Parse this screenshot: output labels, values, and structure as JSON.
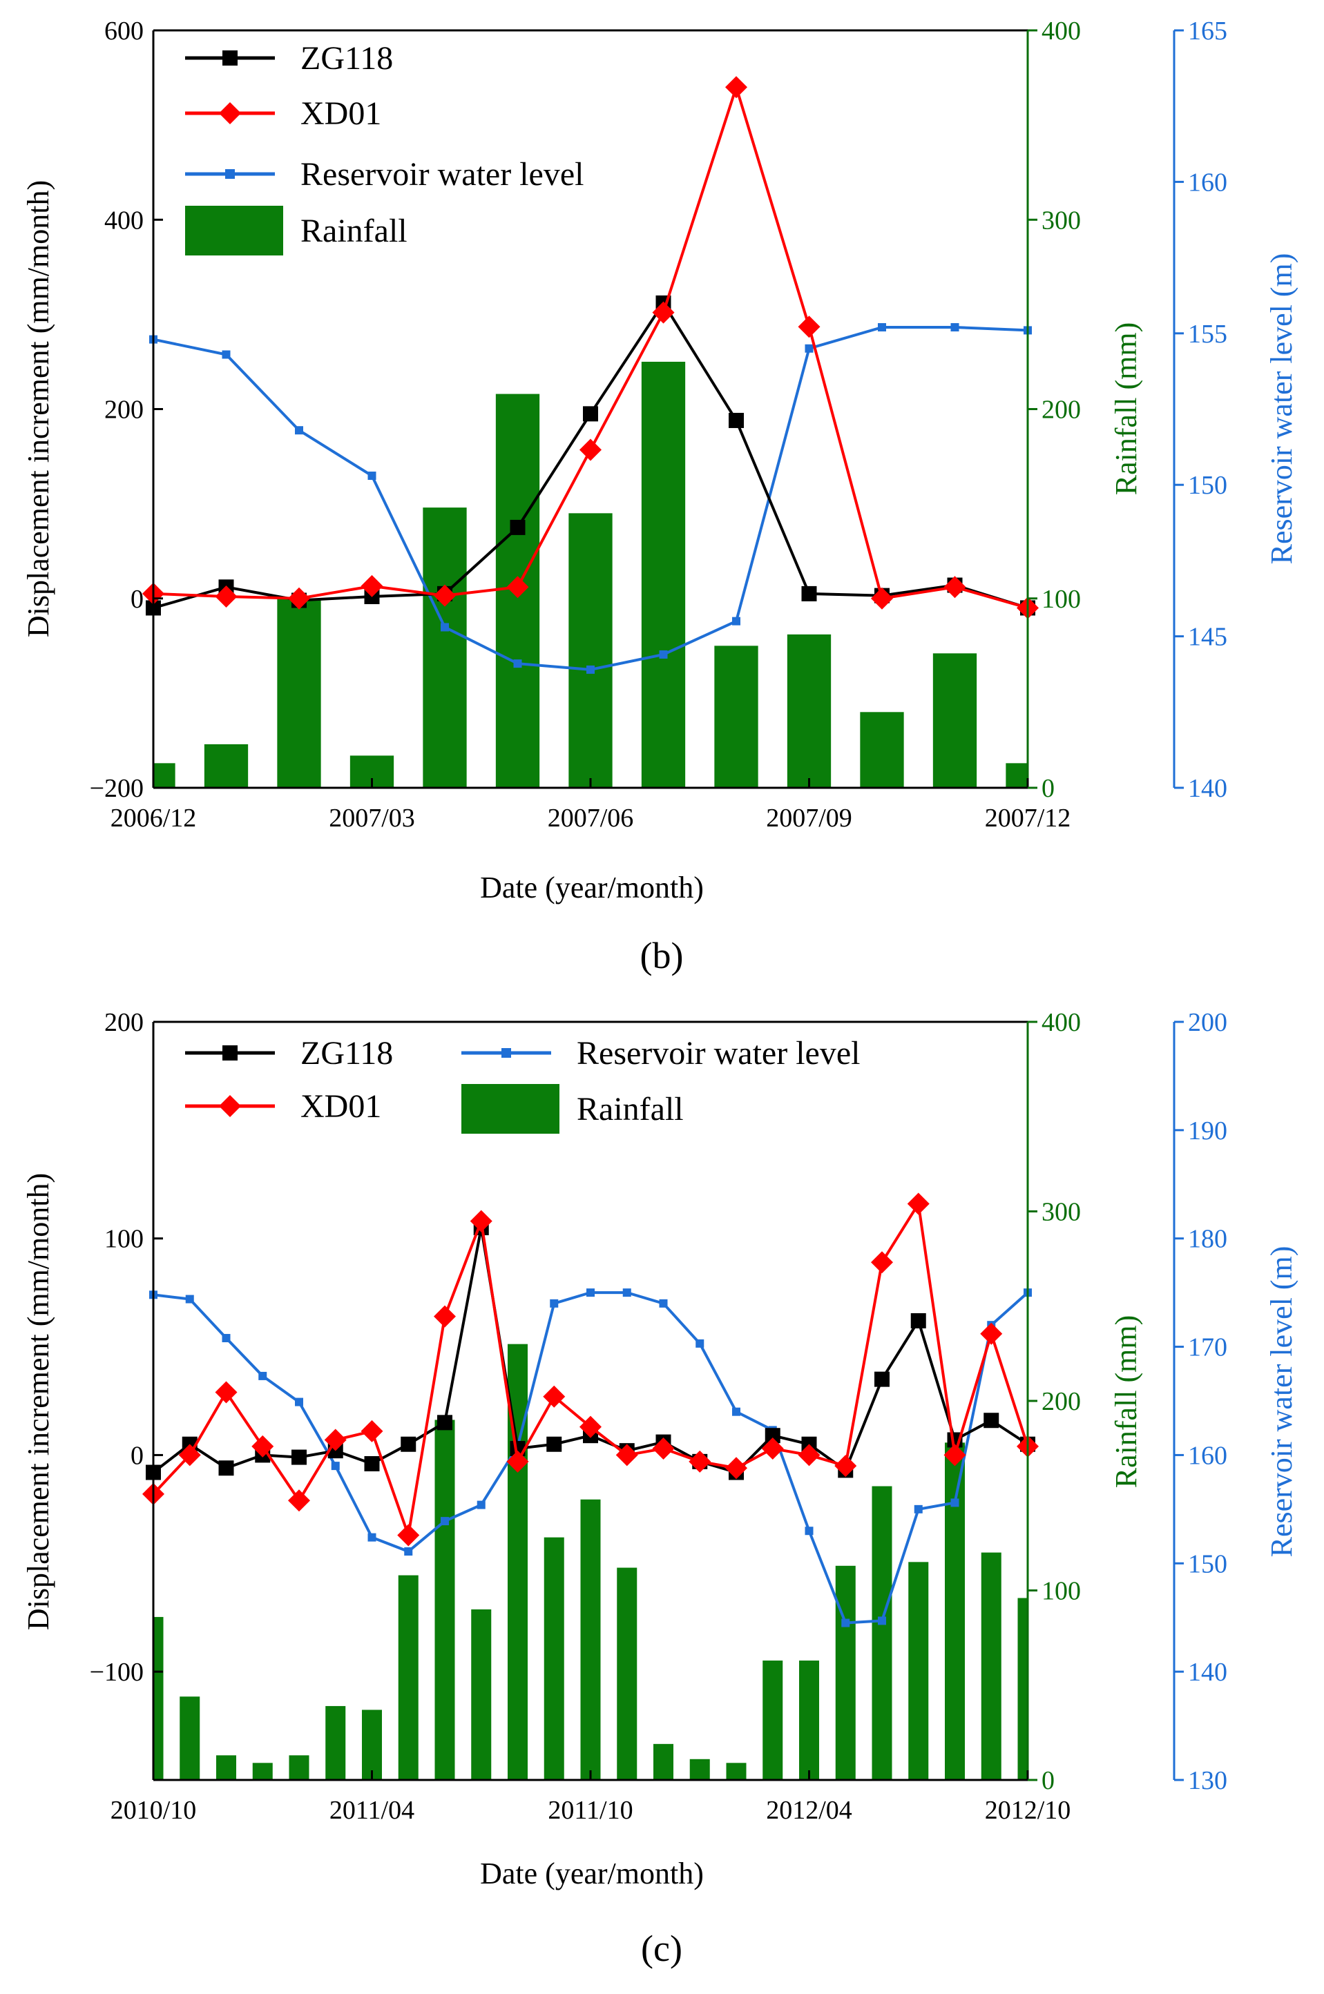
{
  "chart_data": [
    {
      "type": "line+bar",
      "panel_label": "(b)",
      "xlabel": "Date (year/month)",
      "ylabel_left": "Displacement increment (mm/month)",
      "ylabel_right1": "Rainfall (mm)",
      "ylabel_right2": "Reservoir water level (m)",
      "x_ticks": [
        "2006/12",
        "2007/03",
        "2007/06",
        "2007/09",
        "2007/12"
      ],
      "x_tick_index": [
        0,
        3,
        6,
        9,
        12
      ],
      "n_points": 13,
      "ylim_left": [
        -200,
        600
      ],
      "yticks_left": [
        "−200",
        "0",
        "200",
        "400",
        "600"
      ],
      "ylim_rain": [
        0,
        400
      ],
      "yticks_rain": [
        "0",
        "100",
        "200",
        "300",
        "400"
      ],
      "ylim_water": [
        140,
        165
      ],
      "yticks_water": [
        "140",
        "145",
        "150",
        "155",
        "160",
        "165"
      ],
      "colors": {
        "zg118": "#000000",
        "xd01": "#ff0000",
        "water": "#1f6fd6",
        "rain": "#0a7d0a",
        "rain_axis": "#0a6e0a",
        "water_axis": "#1f6fd6"
      },
      "legend": {
        "zg118": "ZG118",
        "xd01": "XD01",
        "water": "Reservoir water level",
        "rain": "Rainfall"
      },
      "series": [
        {
          "name": "ZG118",
          "values": [
            -10,
            12,
            -2,
            2,
            5,
            75,
            195,
            312,
            188,
            5,
            3,
            14,
            -10
          ]
        },
        {
          "name": "XD01",
          "values": [
            5,
            2,
            0,
            13,
            3,
            12,
            157,
            302,
            540,
            287,
            0,
            12,
            -10
          ]
        },
        {
          "name": "Reservoir water level",
          "values": [
            154.8,
            154.3,
            151.8,
            150.3,
            145.3,
            144.1,
            143.9,
            144.4,
            145.5,
            154.5,
            155.2,
            155.2,
            155.1
          ]
        },
        {
          "name": "Rainfall",
          "values": [
            13,
            23,
            100,
            17,
            148,
            208,
            145,
            225,
            75,
            81,
            40,
            71,
            13
          ]
        }
      ]
    },
    {
      "type": "line+bar",
      "panel_label": "(c)",
      "xlabel": "Date (year/month)",
      "ylabel_left": "Displacement increment (mm/month)",
      "ylabel_right1": "Rainfall (mm)",
      "ylabel_right2": "Reservoir water level (m)",
      "x_ticks": [
        "2010/10",
        "2011/04",
        "2011/10",
        "2012/04",
        "2012/10"
      ],
      "x_tick_index": [
        0,
        6,
        12,
        18,
        24
      ],
      "n_points": 25,
      "ylim_left": [
        -150,
        200
      ],
      "yticks_left": [
        "−100",
        "0",
        "100",
        "200"
      ],
      "yticks_left_values": [
        -100,
        0,
        100,
        200
      ],
      "ylim_rain": [
        0,
        400
      ],
      "yticks_rain": [
        "0",
        "100",
        "200",
        "300",
        "400"
      ],
      "ylim_water": [
        130,
        200
      ],
      "yticks_water": [
        "130",
        "140",
        "150",
        "160",
        "170",
        "180",
        "190",
        "200"
      ],
      "colors": {
        "zg118": "#000000",
        "xd01": "#ff0000",
        "water": "#1f6fd6",
        "rain": "#0a7d0a",
        "rain_axis": "#0a6e0a",
        "water_axis": "#1f6fd6"
      },
      "legend": {
        "zg118": "ZG118",
        "xd01": "XD01",
        "water": "Reservoir water level",
        "rain": "Rainfall"
      },
      "series": [
        {
          "name": "ZG118",
          "values": [
            -8,
            5,
            -6,
            0,
            -1,
            2,
            -4,
            5,
            15,
            105,
            3,
            5,
            9,
            2,
            6,
            -3,
            -8,
            9,
            5,
            -7,
            35,
            62,
            7,
            16,
            5
          ]
        },
        {
          "name": "XD01",
          "values": [
            -18,
            0,
            29,
            4,
            -21,
            7,
            11,
            -37,
            64,
            108,
            -3,
            27,
            13,
            0,
            3,
            -3,
            -6,
            3,
            0,
            -5,
            89,
            116,
            0,
            56,
            4
          ]
        },
        {
          "name": "Reservoir water level",
          "values": [
            174.8,
            174.4,
            170.8,
            167.3,
            164.9,
            159.0,
            152.4,
            151.1,
            153.9,
            155.4,
            160.8,
            174.0,
            175.0,
            175.0,
            174.0,
            170.3,
            164.0,
            162.3,
            153.0,
            144.5,
            144.7,
            155.0,
            155.6,
            172.0,
            175.0
          ]
        },
        {
          "name": "Rainfall",
          "values": [
            86,
            44,
            13,
            9,
            13,
            39,
            37,
            108,
            190,
            90,
            230,
            128,
            148,
            112,
            19,
            11,
            9,
            63,
            63,
            113,
            155,
            115,
            178,
            120,
            96
          ]
        }
      ]
    }
  ]
}
